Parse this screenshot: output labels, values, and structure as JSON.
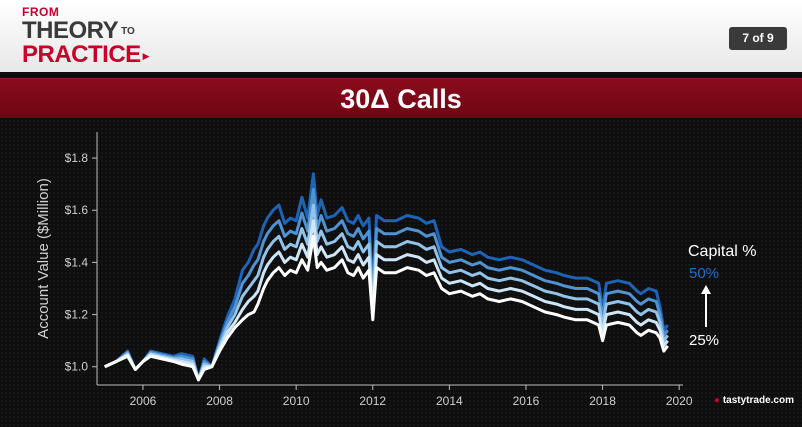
{
  "header": {
    "logo_line1": "FROM",
    "logo_line2": "THEORY",
    "logo_to": "TO",
    "logo_line3": "PRACTICE",
    "slide_counter": "7 of 9"
  },
  "slide": {
    "title": "30Δ Calls"
  },
  "legend": {
    "title": "Capital %",
    "high_label": "50%",
    "low_label": "25%"
  },
  "brand": {
    "name": "tastytrade",
    "suffix": ".com"
  },
  "colors": {
    "series": [
      "#ffffff",
      "#cfe6f7",
      "#92c3ea",
      "#4f93d3",
      "#1e63b4"
    ],
    "title_bar": "#7a0818",
    "brand_red": "#c4002b"
  },
  "chart_data": {
    "type": "line",
    "title": "",
    "ylabel": "Account Value ($Million)",
    "xlabel": "",
    "xlim": [
      2004.8,
      2020.1
    ],
    "ylim": [
      0.93,
      1.9
    ],
    "x_ticks": [
      2006,
      2008,
      2010,
      2012,
      2014,
      2016,
      2018,
      2020
    ],
    "x_tick_labels": [
      "2006",
      "2008",
      "2010",
      "2012",
      "2014",
      "2016",
      "2018",
      "2020"
    ],
    "y_ticks": [
      1.0,
      1.2,
      1.4,
      1.6,
      1.8
    ],
    "y_tick_labels": [
      "$1.0",
      "$1.2",
      "$1.4",
      "$1.6",
      "$1.8"
    ],
    "x": [
      2005.0,
      2005.3,
      2005.6,
      2005.8,
      2006.0,
      2006.2,
      2006.5,
      2006.8,
      2007.0,
      2007.3,
      2007.45,
      2007.6,
      2007.8,
      2008.0,
      2008.2,
      2008.4,
      2008.6,
      2008.75,
      2008.9,
      2009.0,
      2009.15,
      2009.25,
      2009.4,
      2009.55,
      2009.7,
      2009.85,
      2010.0,
      2010.15,
      2010.3,
      2010.45,
      2010.55,
      2010.65,
      2010.8,
      2011.0,
      2011.2,
      2011.35,
      2011.5,
      2011.62,
      2011.75,
      2011.9,
      2012.0,
      2012.1,
      2012.3,
      2012.6,
      2012.9,
      2013.2,
      2013.4,
      2013.6,
      2013.8,
      2014.0,
      2014.3,
      2014.6,
      2014.8,
      2015.0,
      2015.3,
      2015.6,
      2015.9,
      2016.2,
      2016.5,
      2016.8,
      2017.0,
      2017.3,
      2017.6,
      2017.9,
      2018.0,
      2018.1,
      2018.4,
      2018.7,
      2018.9,
      2019.0,
      2019.2,
      2019.4,
      2019.5,
      2019.6,
      2019.7
    ],
    "series": [
      {
        "name": "25%",
        "values": [
          1.0,
          1.02,
          1.04,
          0.99,
          1.02,
          1.04,
          1.03,
          1.02,
          1.01,
          1.0,
          0.95,
          0.99,
          1.0,
          1.06,
          1.11,
          1.15,
          1.18,
          1.2,
          1.21,
          1.24,
          1.3,
          1.33,
          1.36,
          1.38,
          1.35,
          1.37,
          1.36,
          1.41,
          1.37,
          1.5,
          1.38,
          1.4,
          1.37,
          1.38,
          1.41,
          1.36,
          1.35,
          1.38,
          1.34,
          1.37,
          1.18,
          1.38,
          1.36,
          1.36,
          1.38,
          1.37,
          1.35,
          1.36,
          1.3,
          1.28,
          1.29,
          1.27,
          1.28,
          1.26,
          1.25,
          1.26,
          1.25,
          1.23,
          1.21,
          1.2,
          1.19,
          1.18,
          1.18,
          1.16,
          1.1,
          1.16,
          1.17,
          1.16,
          1.13,
          1.12,
          1.14,
          1.13,
          1.11,
          1.06,
          1.08
        ]
      },
      {
        "name": "",
        "values": [
          1.0,
          1.02,
          1.045,
          0.99,
          1.02,
          1.045,
          1.035,
          1.025,
          1.02,
          1.01,
          0.95,
          1.0,
          1.0,
          1.07,
          1.13,
          1.17,
          1.22,
          1.25,
          1.27,
          1.29,
          1.36,
          1.39,
          1.42,
          1.44,
          1.4,
          1.42,
          1.41,
          1.47,
          1.42,
          1.56,
          1.43,
          1.46,
          1.42,
          1.43,
          1.46,
          1.41,
          1.4,
          1.43,
          1.39,
          1.42,
          1.21,
          1.43,
          1.41,
          1.41,
          1.43,
          1.42,
          1.4,
          1.41,
          1.34,
          1.32,
          1.33,
          1.31,
          1.32,
          1.3,
          1.29,
          1.3,
          1.29,
          1.27,
          1.25,
          1.24,
          1.23,
          1.22,
          1.22,
          1.2,
          1.13,
          1.2,
          1.21,
          1.2,
          1.17,
          1.16,
          1.18,
          1.17,
          1.14,
          1.08,
          1.1
        ]
      },
      {
        "name": "",
        "values": [
          1.0,
          1.02,
          1.05,
          0.99,
          1.02,
          1.05,
          1.04,
          1.03,
          1.03,
          1.02,
          0.95,
          1.01,
          1.0,
          1.08,
          1.15,
          1.2,
          1.27,
          1.3,
          1.33,
          1.35,
          1.42,
          1.45,
          1.48,
          1.5,
          1.45,
          1.47,
          1.46,
          1.53,
          1.47,
          1.62,
          1.48,
          1.52,
          1.47,
          1.48,
          1.51,
          1.46,
          1.45,
          1.48,
          1.44,
          1.47,
          1.24,
          1.48,
          1.46,
          1.46,
          1.48,
          1.47,
          1.45,
          1.46,
          1.38,
          1.36,
          1.37,
          1.35,
          1.36,
          1.34,
          1.33,
          1.34,
          1.33,
          1.31,
          1.29,
          1.28,
          1.27,
          1.26,
          1.26,
          1.24,
          1.16,
          1.24,
          1.25,
          1.24,
          1.21,
          1.2,
          1.22,
          1.21,
          1.17,
          1.1,
          1.12
        ]
      },
      {
        "name": "",
        "values": [
          1.0,
          1.02,
          1.055,
          0.99,
          1.02,
          1.055,
          1.045,
          1.035,
          1.04,
          1.03,
          0.95,
          1.02,
          1.0,
          1.09,
          1.17,
          1.23,
          1.32,
          1.35,
          1.39,
          1.41,
          1.48,
          1.51,
          1.54,
          1.56,
          1.5,
          1.52,
          1.51,
          1.59,
          1.52,
          1.68,
          1.53,
          1.58,
          1.52,
          1.53,
          1.56,
          1.51,
          1.5,
          1.53,
          1.49,
          1.52,
          1.27,
          1.53,
          1.51,
          1.51,
          1.53,
          1.52,
          1.5,
          1.51,
          1.42,
          1.4,
          1.41,
          1.39,
          1.4,
          1.38,
          1.37,
          1.38,
          1.37,
          1.35,
          1.33,
          1.32,
          1.31,
          1.3,
          1.3,
          1.28,
          1.19,
          1.28,
          1.29,
          1.28,
          1.25,
          1.24,
          1.26,
          1.25,
          1.2,
          1.12,
          1.14
        ]
      },
      {
        "name": "50%",
        "values": [
          1.0,
          1.02,
          1.06,
          0.99,
          1.02,
          1.06,
          1.05,
          1.04,
          1.05,
          1.04,
          0.95,
          1.03,
          1.0,
          1.1,
          1.19,
          1.26,
          1.37,
          1.4,
          1.45,
          1.47,
          1.54,
          1.57,
          1.6,
          1.62,
          1.55,
          1.57,
          1.56,
          1.65,
          1.57,
          1.74,
          1.58,
          1.64,
          1.57,
          1.58,
          1.61,
          1.56,
          1.55,
          1.58,
          1.54,
          1.57,
          1.3,
          1.58,
          1.56,
          1.56,
          1.58,
          1.57,
          1.55,
          1.56,
          1.46,
          1.44,
          1.45,
          1.43,
          1.44,
          1.42,
          1.41,
          1.42,
          1.41,
          1.39,
          1.37,
          1.36,
          1.35,
          1.34,
          1.34,
          1.32,
          1.22,
          1.32,
          1.33,
          1.32,
          1.29,
          1.28,
          1.3,
          1.29,
          1.23,
          1.14,
          1.16
        ]
      }
    ]
  }
}
